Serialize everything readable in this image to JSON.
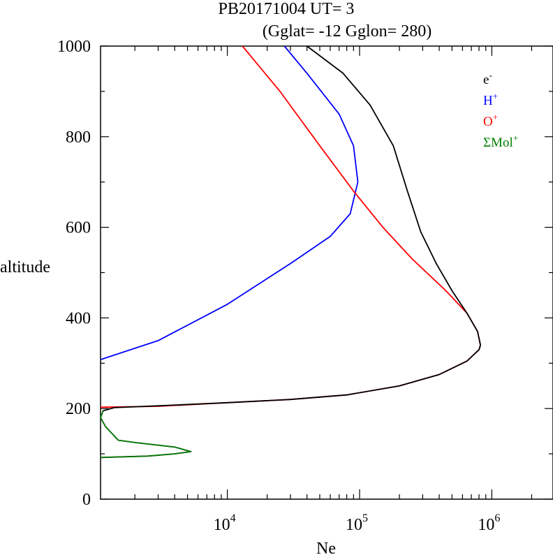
{
  "chart_data": {
    "type": "line",
    "title": "PB20171004   UT=  3",
    "subtitle": "(Gglat= -12   Gglon=  280)",
    "xlabel": "Ne",
    "ylabel": "altitude",
    "xscale": "log",
    "xlim": [
      1100,
      2900000
    ],
    "ylim": [
      0,
      1000
    ],
    "grid": false,
    "legend_position": "top-right",
    "x_ticks": [
      {
        "value": 10000,
        "base": "10",
        "exp": "4"
      },
      {
        "value": 100000,
        "base": "10",
        "exp": "5"
      },
      {
        "value": 1000000,
        "base": "10",
        "exp": "6"
      }
    ],
    "y_ticks": [
      {
        "value": 0,
        "label": "0"
      },
      {
        "value": 200,
        "label": "200"
      },
      {
        "value": 400,
        "label": "400"
      },
      {
        "value": 600,
        "label": "600"
      },
      {
        "value": 800,
        "label": "800"
      },
      {
        "value": 1000,
        "label": "1000"
      }
    ],
    "series": [
      {
        "name_base": "e",
        "name_sup": "-",
        "color": "#000000",
        "points": [
          [
            1100,
            92
          ],
          [
            2500,
            95
          ],
          [
            4000,
            100
          ],
          [
            5300,
            105
          ],
          [
            4000,
            115
          ],
          [
            2000,
            125
          ],
          [
            1500,
            130
          ],
          [
            1200,
            160
          ],
          [
            1100,
            180
          ],
          [
            1150,
            195
          ],
          [
            1400,
            202
          ],
          [
            3000,
            206
          ],
          [
            10000,
            213
          ],
          [
            30000,
            220
          ],
          [
            80000,
            230
          ],
          [
            200000,
            250
          ],
          [
            400000,
            275
          ],
          [
            650000,
            305
          ],
          [
            800000,
            330
          ],
          [
            820000,
            340
          ],
          [
            780000,
            370
          ],
          [
            650000,
            410
          ],
          [
            500000,
            460
          ],
          [
            380000,
            520
          ],
          [
            290000,
            590
          ],
          [
            230000,
            680
          ],
          [
            180000,
            780
          ],
          [
            120000,
            870
          ],
          [
            75000,
            940
          ],
          [
            40000,
            1000
          ]
        ]
      },
      {
        "name_base": "H",
        "name_sup": "+",
        "color": "#0000ff",
        "points": [
          [
            1100,
            308
          ],
          [
            3000,
            350
          ],
          [
            10000,
            430
          ],
          [
            30000,
            520
          ],
          [
            60000,
            580
          ],
          [
            85000,
            630
          ],
          [
            97000,
            700
          ],
          [
            90000,
            780
          ],
          [
            70000,
            850
          ],
          [
            40000,
            940
          ],
          [
            27000,
            1000
          ]
        ]
      },
      {
        "name_base": "O",
        "name_sup": "+",
        "color": "#ff0000",
        "points": [
          [
            1100,
            203
          ],
          [
            3000,
            205
          ],
          [
            10000,
            213
          ],
          [
            30000,
            220
          ],
          [
            80000,
            230
          ],
          [
            200000,
            250
          ],
          [
            400000,
            275
          ],
          [
            650000,
            305
          ],
          [
            800000,
            330
          ],
          [
            820000,
            340
          ],
          [
            780000,
            370
          ],
          [
            650000,
            410
          ],
          [
            450000,
            460
          ],
          [
            250000,
            530
          ],
          [
            150000,
            600
          ],
          [
            90000,
            680
          ],
          [
            50000,
            780
          ],
          [
            25000,
            900
          ],
          [
            13000,
            1000
          ]
        ]
      },
      {
        "name_base": "ΣMol",
        "name_sup": "+",
        "color": "#008000",
        "points": [
          [
            1100,
            92
          ],
          [
            2500,
            95
          ],
          [
            4000,
            100
          ],
          [
            5300,
            105
          ],
          [
            4000,
            115
          ],
          [
            2000,
            125
          ],
          [
            1500,
            130
          ],
          [
            1200,
            160
          ],
          [
            1100,
            180
          ],
          [
            1150,
            195
          ]
        ]
      }
    ]
  }
}
